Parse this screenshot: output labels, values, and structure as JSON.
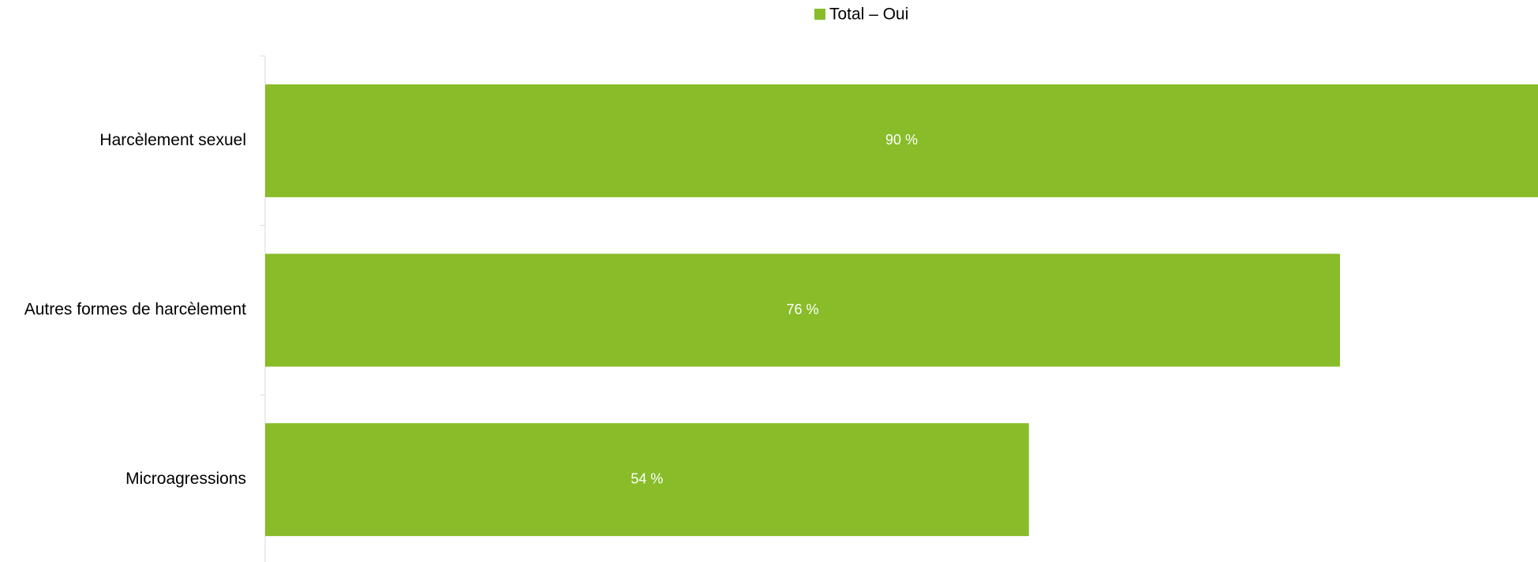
{
  "chart_data": {
    "type": "bar",
    "orientation": "horizontal",
    "categories": [
      "Harcèlement sexuel",
      "Autres formes de harcèlement",
      "Microagressions"
    ],
    "series": [
      {
        "name": "Total – Oui",
        "color": "#88bc29",
        "values": [
          90,
          76,
          54
        ],
        "value_labels": [
          "90 %",
          "76 %",
          "54 %"
        ]
      }
    ],
    "xlim": [
      0,
      90
    ],
    "legend": "top"
  }
}
